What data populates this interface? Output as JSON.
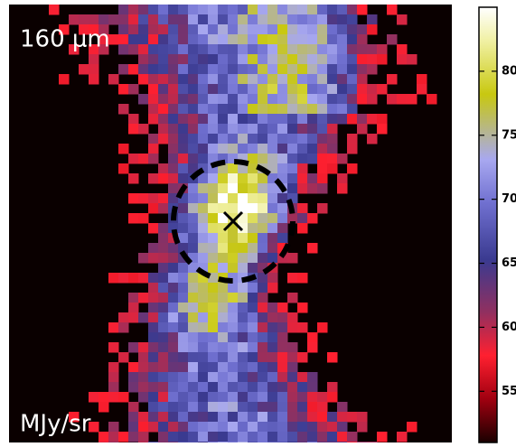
{
  "image": {
    "label": "160 μm",
    "unit": "MJy/sr"
  },
  "colorbar": {
    "range": [
      51,
      85
    ],
    "ticks": [
      55,
      60,
      65,
      70,
      75,
      80
    ]
  }
}
